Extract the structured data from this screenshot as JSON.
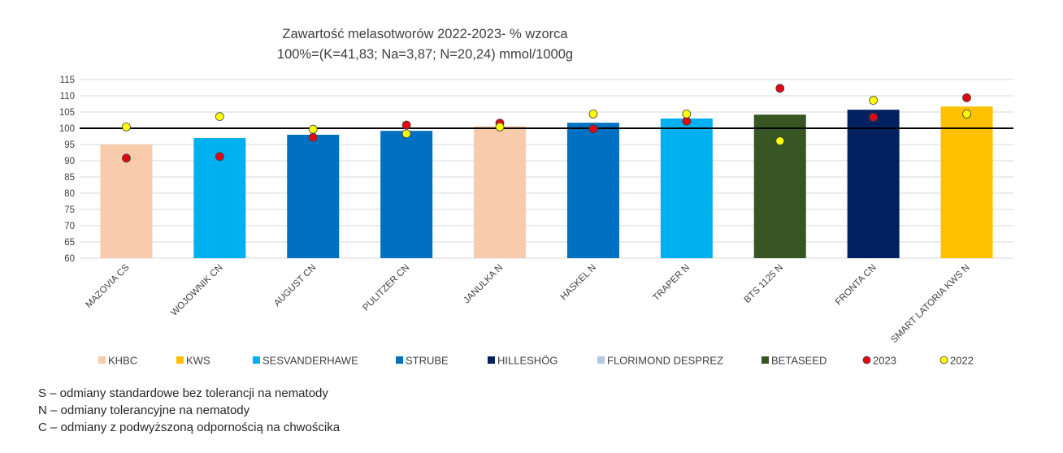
{
  "chart_data": {
    "type": "bar",
    "title_lines": [
      "Zawartość melasotworów 2022-2023- % wzorca",
      "100%=(K=41,83; Na=3,87; N=20,24) mmol/1000g"
    ],
    "categories": [
      "MAZOVIA CS",
      "WOJOWNIK CN",
      "AUGUST CN",
      "PULITZER CN",
      "JANULKA N",
      "HASKEL N",
      "TRAPER N",
      "BTS 1125 N",
      "FRONTA CN",
      "SMART LATORIA KWS N"
    ],
    "values": [
      95,
      97,
      98,
      99.2,
      100.6,
      101.7,
      103,
      104.2,
      105.7,
      106.7
    ],
    "bar_breeders": [
      "KHBC",
      "SESVANDERHAWE",
      "STRUBE",
      "STRUBE",
      "KHBC",
      "STRUBE",
      "SESVANDERHAWE",
      "BETASEED",
      "HILLESHÖG",
      "KWS"
    ],
    "series": [
      {
        "name": "2023",
        "color": "#e30613",
        "values": [
          90.8,
          91.3,
          97.2,
          101,
          101.6,
          99.8,
          102.2,
          112.3,
          103.4,
          109.4
        ]
      },
      {
        "name": "2022",
        "color": "#ffff00",
        "values": [
          100.4,
          103.6,
          99.7,
          98.3,
          100.4,
          104.4,
          104.4,
          96.1,
          108.6,
          104.4
        ]
      }
    ],
    "reference_line": 100,
    "ylim": [
      60,
      115
    ],
    "yticks": [
      "60",
      "65",
      "70",
      "75",
      "80",
      "85",
      "90",
      "95",
      "100",
      "105",
      "110",
      "115"
    ],
    "grid": true,
    "legend_position": "bottom",
    "legend": [
      {
        "label": "KHBC",
        "marker": "square",
        "color": "#f8cbad"
      },
      {
        "label": "KWS",
        "marker": "square",
        "color": "#ffc000"
      },
      {
        "label": "SESVANDERHAWE",
        "marker": "square",
        "color": "#00b0f0"
      },
      {
        "label": "STRUBE",
        "marker": "square",
        "color": "#0070c0"
      },
      {
        "label": "HILLESHÖG",
        "marker": "square",
        "color": "#002060"
      },
      {
        "label": "FLORIMOND DESPREZ",
        "marker": "square",
        "color": "#b4c7e7"
      },
      {
        "label": "BETASEED",
        "marker": "square",
        "color": "#375623"
      },
      {
        "label": "2023",
        "marker": "circle",
        "color": "#e30613"
      },
      {
        "label": "2022",
        "marker": "circle",
        "color": "#ffff00"
      }
    ]
  },
  "notes": [
    "S – odmiany standardowe bez tolerancji na nematody",
    "N – odmiany tolerancyjne na nematody",
    "C – odmiany z podwyższoną odpornością na chwościka"
  ]
}
